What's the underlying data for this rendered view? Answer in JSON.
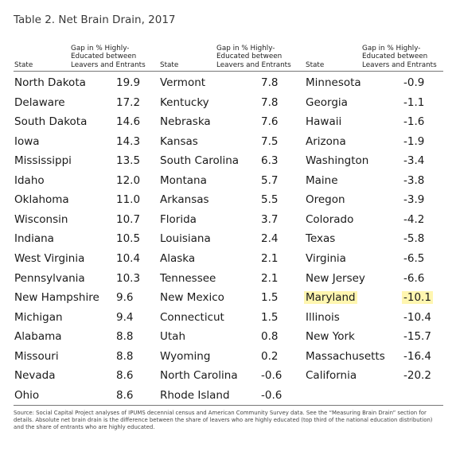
{
  "title": "Table 2. Net Brain Drain, 2017",
  "headers": {
    "state": "State",
    "gap_line1": "Gap in % Highly-",
    "gap_line2": "Educated between",
    "gap_line3": "Leavers and Entrants"
  },
  "columns": [
    [
      {
        "state": "North Dakota",
        "value": "19.9"
      },
      {
        "state": "Delaware",
        "value": "17.2"
      },
      {
        "state": "South Dakota",
        "value": "14.6"
      },
      {
        "state": "Iowa",
        "value": "14.3"
      },
      {
        "state": "Mississippi",
        "value": "13.5"
      },
      {
        "state": "Idaho",
        "value": "12.0"
      },
      {
        "state": "Oklahoma",
        "value": "11.0"
      },
      {
        "state": "Wisconsin",
        "value": "10.7"
      },
      {
        "state": "Indiana",
        "value": "10.5"
      },
      {
        "state": "West Virginia",
        "value": "10.4"
      },
      {
        "state": "Pennsylvania",
        "value": "10.3"
      },
      {
        "state": "New Hampshire",
        "value": "9.6"
      },
      {
        "state": "Michigan",
        "value": "9.4"
      },
      {
        "state": "Alabama",
        "value": "8.8"
      },
      {
        "state": "Missouri",
        "value": "8.8"
      },
      {
        "state": "Nevada",
        "value": "8.6"
      },
      {
        "state": "Ohio",
        "value": "8.6"
      }
    ],
    [
      {
        "state": "Vermont",
        "value": "7.8"
      },
      {
        "state": "Kentucky",
        "value": "7.8"
      },
      {
        "state": "Nebraska",
        "value": "7.6"
      },
      {
        "state": "Kansas",
        "value": "7.5"
      },
      {
        "state": "South Carolina",
        "value": "6.3"
      },
      {
        "state": "Montana",
        "value": "5.7"
      },
      {
        "state": "Arkansas",
        "value": "5.5"
      },
      {
        "state": "Florida",
        "value": "3.7"
      },
      {
        "state": "Louisiana",
        "value": "2.4"
      },
      {
        "state": "Alaska",
        "value": "2.1"
      },
      {
        "state": "Tennessee",
        "value": "2.1"
      },
      {
        "state": "New Mexico",
        "value": "1.5"
      },
      {
        "state": "Connecticut",
        "value": "1.5"
      },
      {
        "state": "Utah",
        "value": "0.8"
      },
      {
        "state": "Wyoming",
        "value": "0.2"
      },
      {
        "state": "North Carolina",
        "value": "-0.6"
      },
      {
        "state": "Rhode Island",
        "value": "-0.6"
      }
    ],
    [
      {
        "state": "Minnesota",
        "value": "-0.9"
      },
      {
        "state": "Georgia",
        "value": "-1.1"
      },
      {
        "state": "Hawaii",
        "value": "-1.6"
      },
      {
        "state": "Arizona",
        "value": "-1.9"
      },
      {
        "state": "Washington",
        "value": "-3.4"
      },
      {
        "state": "Maine",
        "value": "-3.8"
      },
      {
        "state": "Oregon",
        "value": "-3.9"
      },
      {
        "state": "Colorado",
        "value": "-4.2"
      },
      {
        "state": "Texas",
        "value": "-5.8"
      },
      {
        "state": "Virginia",
        "value": "-6.5"
      },
      {
        "state": "New Jersey",
        "value": "-6.6"
      },
      {
        "state": "Maryland",
        "value": "-10.1",
        "highlight": true
      },
      {
        "state": "Illinois",
        "value": "-10.4"
      },
      {
        "state": "New York",
        "value": "-15.7"
      },
      {
        "state": "Massachusetts",
        "value": "-16.4"
      },
      {
        "state": "California",
        "value": "-20.2"
      }
    ]
  ],
  "highlight_color": "#fff6b0",
  "footnote": {
    "line1": "Source: Social Capital Project analyses of IPUMS decennial census and American Community Survey data. See the “Measuring Brain Drain” section for",
    "line2": "details. Absolute net brain drain is the difference between the share of leavers who are highly educated (top third of the national education distribution)",
    "line3": "and the share of entrants who are highly educated."
  }
}
